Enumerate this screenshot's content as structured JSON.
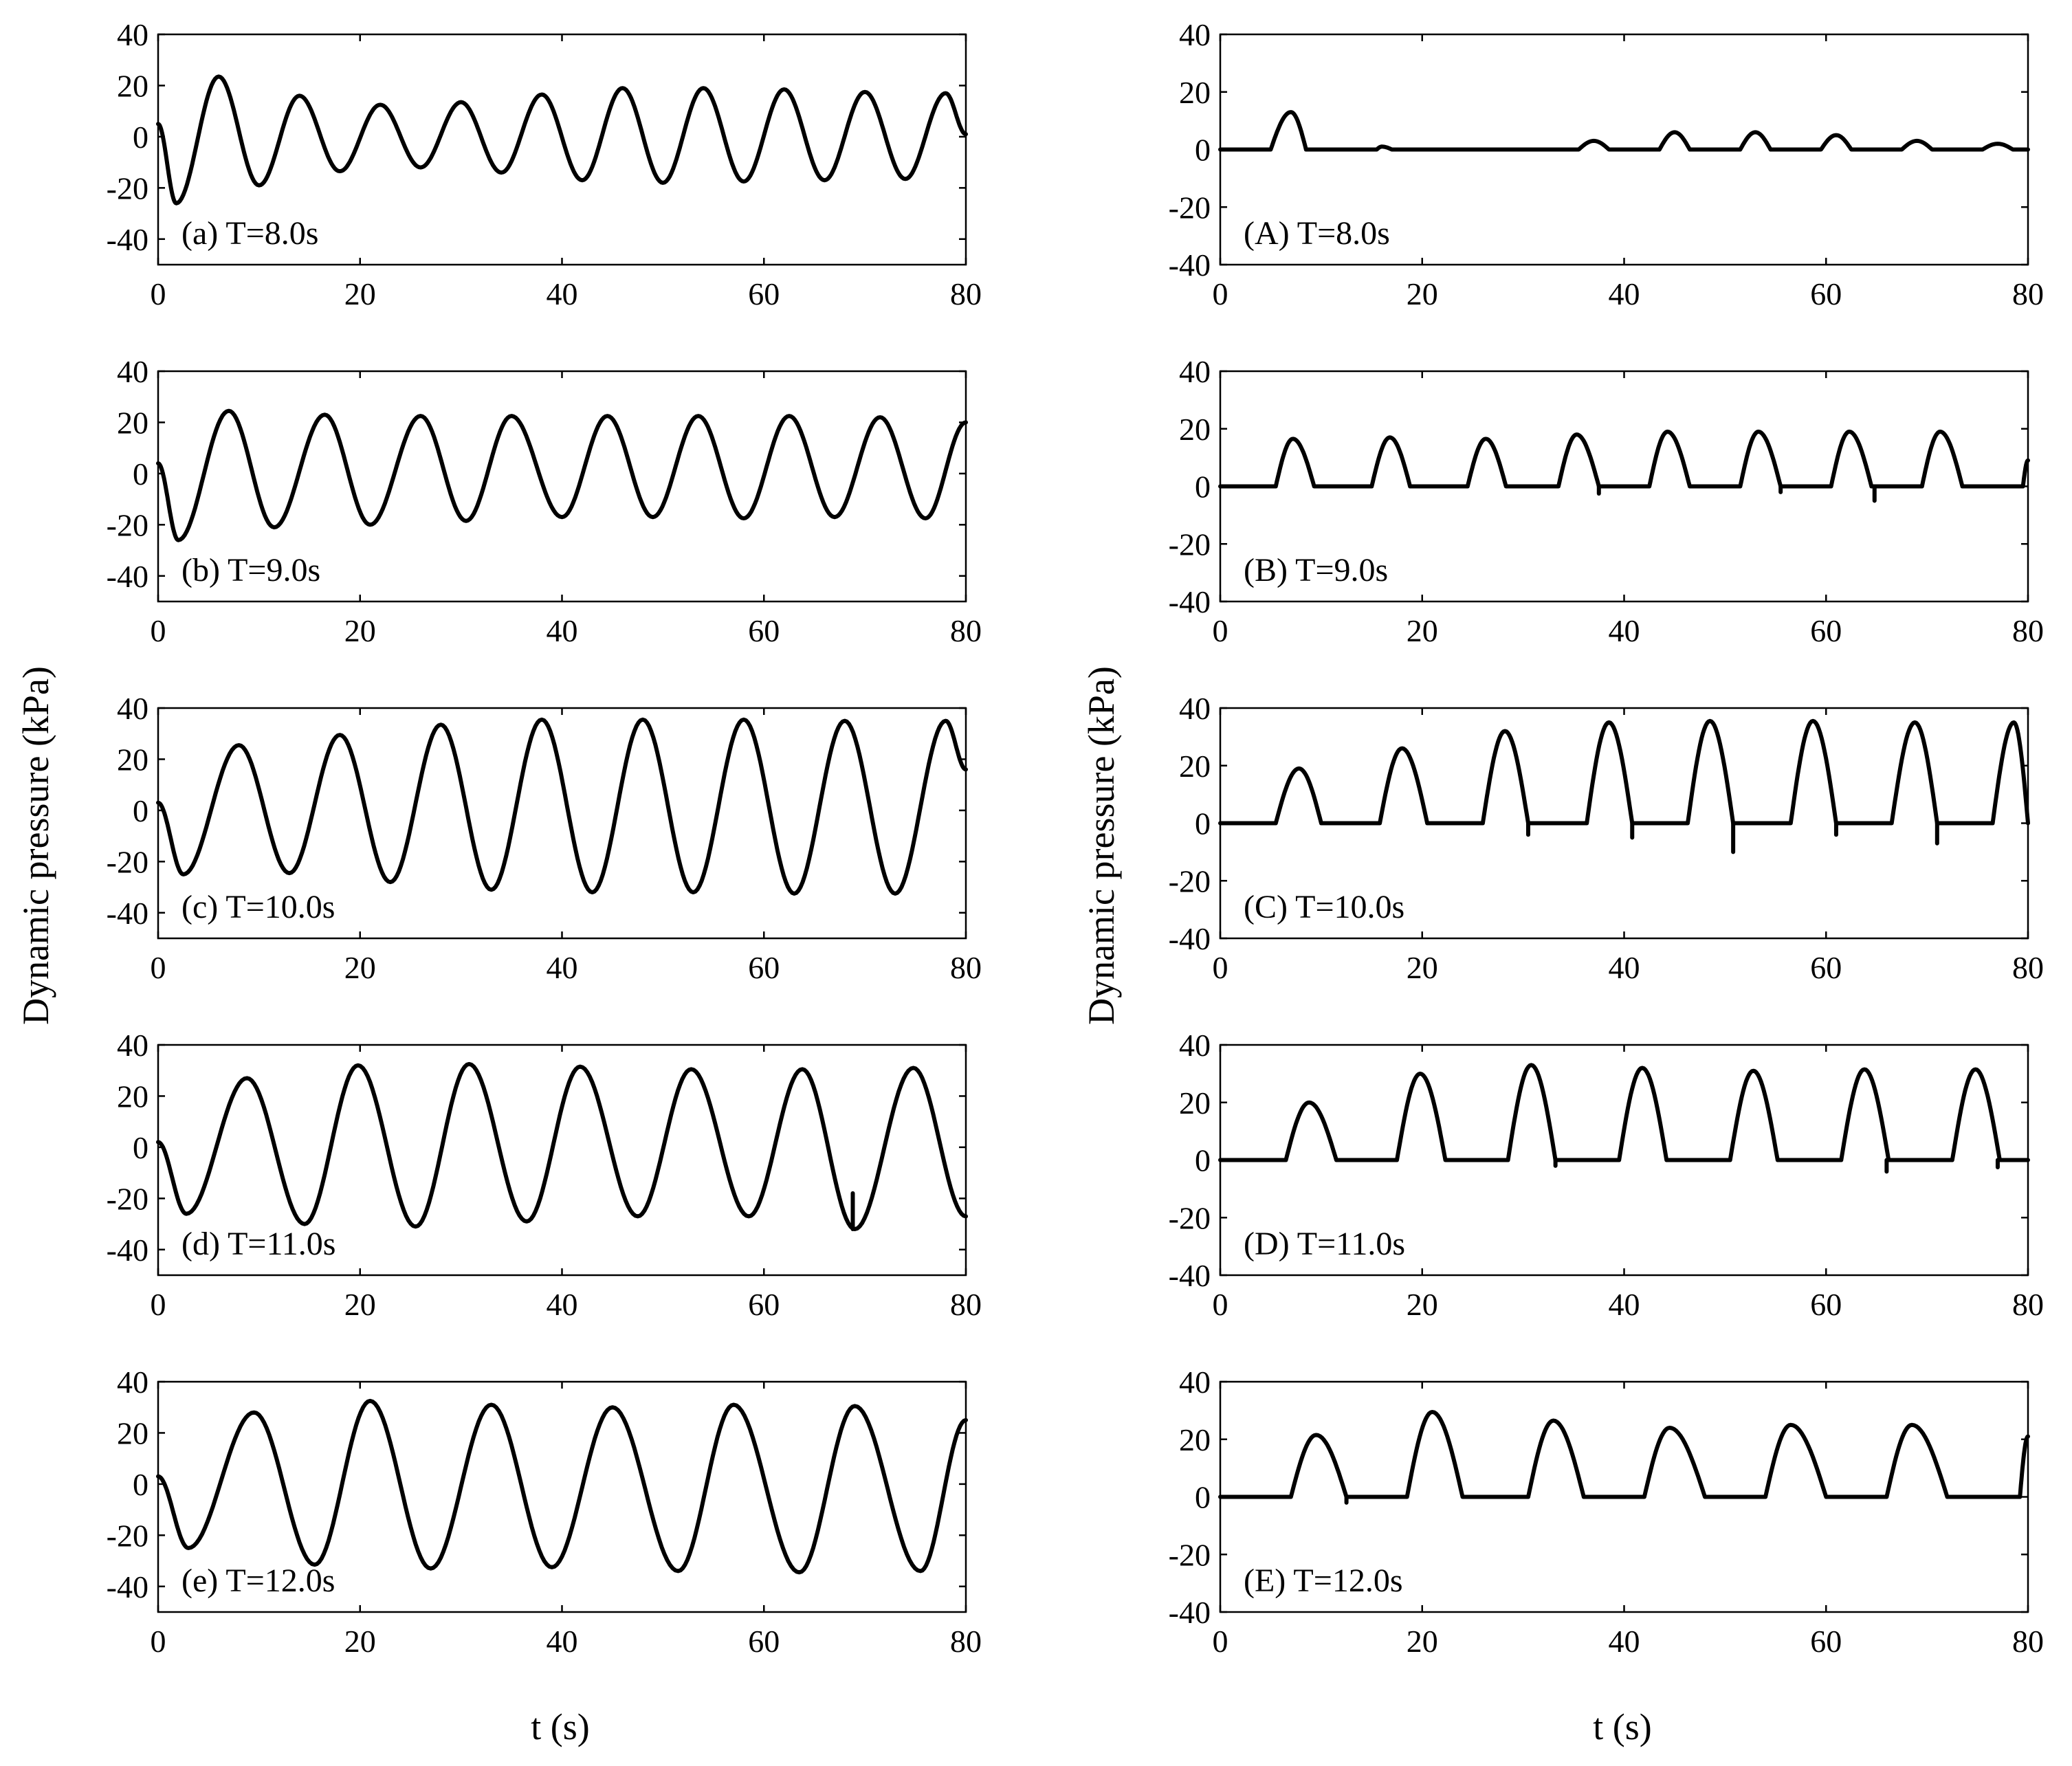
{
  "chart_data": [
    {
      "id": "a",
      "type": "line",
      "panel_label": "(a) T=8.0s",
      "model": "sine",
      "period": 8.0,
      "xlim": [
        0,
        80
      ],
      "ylim": [
        -50,
        40
      ],
      "xticks": [
        0,
        20,
        40,
        60,
        80
      ],
      "yticks": [
        -40,
        -20,
        0,
        20,
        40
      ],
      "peaks": [
        [
          6.0,
          23.5
        ],
        [
          14.0,
          16.0
        ],
        [
          22.0,
          12.5
        ],
        [
          30.0,
          13.5
        ],
        [
          38.0,
          16.5
        ],
        [
          46.0,
          19.0
        ],
        [
          54.0,
          19.0
        ],
        [
          62.0,
          18.5
        ],
        [
          70.0,
          17.5
        ],
        [
          78.0,
          17.0
        ]
      ],
      "troughs": [
        [
          0.0,
          5.0
        ],
        [
          1.8,
          -26.0
        ],
        [
          10.0,
          -19.0
        ],
        [
          18.0,
          -13.5
        ],
        [
          26.0,
          -12.0
        ],
        [
          34.0,
          -14.0
        ],
        [
          42.0,
          -17.0
        ],
        [
          50.0,
          -18.0
        ],
        [
          58.0,
          -17.5
        ],
        [
          66.0,
          -17.0
        ],
        [
          74.0,
          -16.5
        ],
        [
          80.0,
          1.0
        ]
      ]
    },
    {
      "id": "b",
      "type": "line",
      "panel_label": "(b) T=9.0s",
      "model": "sine",
      "period": 9.0,
      "xlim": [
        0,
        80
      ],
      "ylim": [
        -50,
        40
      ],
      "xticks": [
        0,
        20,
        40,
        60,
        80
      ],
      "yticks": [
        -40,
        -20,
        0,
        20,
        40
      ],
      "peaks": [
        [
          7.0,
          24.5
        ],
        [
          16.5,
          23.0
        ],
        [
          26.0,
          22.5
        ],
        [
          35.0,
          22.5
        ],
        [
          44.5,
          22.5
        ],
        [
          53.5,
          22.5
        ],
        [
          62.5,
          22.5
        ],
        [
          71.5,
          22.0
        ]
      ],
      "troughs": [
        [
          0.0,
          4.0
        ],
        [
          2.0,
          -26.0
        ],
        [
          11.5,
          -21.0
        ],
        [
          21.0,
          -20.0
        ],
        [
          30.5,
          -18.5
        ],
        [
          40.0,
          -17.0
        ],
        [
          49.0,
          -17.0
        ],
        [
          58.0,
          -17.5
        ],
        [
          67.0,
          -17.0
        ],
        [
          76.0,
          -17.5
        ],
        [
          80.0,
          20.0
        ]
      ]
    },
    {
      "id": "c",
      "type": "line",
      "panel_label": "(c) T=10.0s",
      "model": "sine",
      "period": 10.0,
      "xlim": [
        0,
        80
      ],
      "ylim": [
        -50,
        40
      ],
      "xticks": [
        0,
        20,
        40,
        60,
        80
      ],
      "yticks": [
        -40,
        -20,
        0,
        20,
        40
      ],
      "peaks": [
        [
          8.0,
          25.5
        ],
        [
          18.0,
          29.5
        ],
        [
          28.0,
          33.5
        ],
        [
          38.0,
          35.5
        ],
        [
          48.0,
          35.5
        ],
        [
          58.0,
          35.5
        ],
        [
          68.0,
          35.0
        ],
        [
          78.0,
          35.0
        ]
      ],
      "troughs": [
        [
          0.0,
          3.0
        ],
        [
          2.5,
          -25.0
        ],
        [
          13.0,
          -24.5
        ],
        [
          23.0,
          -28.0
        ],
        [
          33.0,
          -31.0
        ],
        [
          43.0,
          -32.0
        ],
        [
          53.0,
          -32.0
        ],
        [
          63.0,
          -32.5
        ],
        [
          73.0,
          -32.5
        ],
        [
          80.0,
          16.0
        ]
      ]
    },
    {
      "id": "d",
      "type": "line",
      "panel_label": "(d) T=11.0s",
      "model": "sine",
      "period": 11.0,
      "xlim": [
        0,
        80
      ],
      "ylim": [
        -50,
        40
      ],
      "xticks": [
        0,
        20,
        40,
        60,
        80
      ],
      "yticks": [
        -40,
        -20,
        0,
        20,
        40
      ],
      "peaks": [
        [
          8.8,
          27.0
        ],
        [
          19.8,
          32.0
        ],
        [
          30.8,
          32.5
        ],
        [
          41.8,
          31.5
        ],
        [
          52.8,
          30.5
        ],
        [
          63.8,
          30.5
        ],
        [
          74.8,
          31.0
        ]
      ],
      "troughs": [
        [
          0.0,
          2.0
        ],
        [
          2.8,
          -26.0
        ],
        [
          14.5,
          -30.0
        ],
        [
          25.5,
          -31.0
        ],
        [
          36.5,
          -29.0
        ],
        [
          47.5,
          -27.0
        ],
        [
          58.5,
          -27.0
        ],
        [
          69.0,
          -32.0
        ],
        [
          80.0,
          -27.0
        ]
      ],
      "spikes": [
        [
          68.8,
          -32.0
        ]
      ]
    },
    {
      "id": "e",
      "type": "line",
      "panel_label": "(e) T=12.0s",
      "model": "sine",
      "period": 12.0,
      "xlim": [
        0,
        80
      ],
      "ylim": [
        -50,
        40
      ],
      "xticks": [
        0,
        20,
        40,
        60,
        80
      ],
      "yticks": [
        -40,
        -20,
        0,
        20,
        40
      ],
      "peaks": [
        [
          9.5,
          28.0
        ],
        [
          21.0,
          32.5
        ],
        [
          33.0,
          31.0
        ],
        [
          45.0,
          30.0
        ],
        [
          57.0,
          31.0
        ],
        [
          69.0,
          30.5
        ]
      ],
      "troughs": [
        [
          0.0,
          3.0
        ],
        [
          3.0,
          -25.0
        ],
        [
          15.5,
          -31.5
        ],
        [
          27.0,
          -33.0
        ],
        [
          39.0,
          -32.5
        ],
        [
          51.5,
          -34.0
        ],
        [
          63.5,
          -34.5
        ],
        [
          75.5,
          -34.0
        ],
        [
          80.0,
          25.0
        ]
      ]
    },
    {
      "id": "A",
      "type": "line",
      "panel_label": "(A) T=8.0s",
      "model": "pulse",
      "xlim": [
        0,
        80
      ],
      "ylim": [
        -40,
        40
      ],
      "xticks": [
        0,
        20,
        40,
        60,
        80
      ],
      "yticks": [
        -40,
        -20,
        0,
        20,
        40
      ],
      "pulses": [
        [
          5.0,
          7.0,
          13.0,
          8.5
        ],
        [
          15.5,
          16.0,
          1.0,
          17.0
        ],
        [
          35.5,
          37.0,
          3.0,
          38.5
        ],
        [
          43.5,
          45.0,
          6.0,
          46.5
        ],
        [
          51.5,
          53.0,
          6.0,
          54.5
        ],
        [
          59.5,
          61.0,
          5.0,
          62.5
        ],
        [
          67.5,
          69.0,
          3.0,
          70.5
        ],
        [
          75.5,
          77.0,
          2.0,
          78.5
        ]
      ]
    },
    {
      "id": "B",
      "type": "line",
      "panel_label": "(B) T=9.0s",
      "model": "pulse",
      "xlim": [
        0,
        80
      ],
      "ylim": [
        -40,
        40
      ],
      "xticks": [
        0,
        20,
        40,
        60,
        80
      ],
      "yticks": [
        -40,
        -20,
        0,
        20,
        40
      ],
      "pulses": [
        [
          5.5,
          7.2,
          16.5,
          9.3
        ],
        [
          15.0,
          16.8,
          17.0,
          18.8
        ],
        [
          24.5,
          26.3,
          16.5,
          28.3
        ],
        [
          33.5,
          35.3,
          18.0,
          37.5
        ],
        [
          42.5,
          44.3,
          19.0,
          46.5
        ],
        [
          51.5,
          53.3,
          19.0,
          55.5
        ],
        [
          60.5,
          62.3,
          19.0,
          64.5
        ],
        [
          69.5,
          71.3,
          19.0,
          73.5
        ],
        [
          79.5,
          80.0,
          9.0,
          80.0
        ]
      ],
      "spikes": [
        [
          37.5,
          -2.5
        ],
        [
          55.5,
          -2.0
        ],
        [
          64.8,
          -5.0
        ]
      ]
    },
    {
      "id": "C",
      "type": "line",
      "panel_label": "(C) T=10.0s",
      "model": "pulse",
      "xlim": [
        0,
        80
      ],
      "ylim": [
        -40,
        40
      ],
      "xticks": [
        0,
        20,
        40,
        60,
        80
      ],
      "yticks": [
        -40,
        -20,
        0,
        20,
        40
      ],
      "pulses": [
        [
          5.5,
          7.8,
          19.0,
          10.0
        ],
        [
          15.8,
          18.0,
          26.0,
          20.5
        ],
        [
          26.0,
          28.2,
          32.0,
          30.5
        ],
        [
          36.3,
          38.5,
          35.0,
          40.8
        ],
        [
          46.3,
          48.5,
          35.5,
          50.8
        ],
        [
          56.5,
          58.7,
          35.5,
          61.0
        ],
        [
          66.5,
          68.8,
          35.0,
          71.0
        ],
        [
          76.5,
          78.6,
          35.0,
          80.0
        ]
      ],
      "spikes": [
        [
          30.5,
          -4.0
        ],
        [
          40.8,
          -5.0
        ],
        [
          50.8,
          -10.0
        ],
        [
          61.0,
          -4.0
        ],
        [
          71.0,
          -7.0
        ]
      ]
    },
    {
      "id": "D",
      "type": "line",
      "panel_label": "(D) T=11.0s",
      "model": "pulse",
      "xlim": [
        0,
        80
      ],
      "ylim": [
        -40,
        40
      ],
      "xticks": [
        0,
        20,
        40,
        60,
        80
      ],
      "yticks": [
        -40,
        -20,
        0,
        20,
        40
      ],
      "pulses": [
        [
          6.5,
          8.8,
          20.0,
          11.5
        ],
        [
          17.5,
          19.8,
          30.0,
          22.3
        ],
        [
          28.5,
          30.8,
          33.0,
          33.2
        ],
        [
          39.5,
          41.8,
          32.0,
          44.2
        ],
        [
          50.5,
          52.8,
          31.0,
          55.2
        ],
        [
          61.5,
          63.8,
          31.5,
          66.2
        ],
        [
          72.5,
          74.8,
          31.5,
          77.2
        ]
      ],
      "spikes": [
        [
          33.2,
          -2.0
        ],
        [
          66.0,
          -4.0
        ],
        [
          77.0,
          -2.5
        ]
      ]
    },
    {
      "id": "E",
      "type": "line",
      "panel_label": "(E) T=12.0s",
      "model": "pulse",
      "xlim": [
        0,
        80
      ],
      "ylim": [
        -40,
        40
      ],
      "xticks": [
        0,
        20,
        40,
        60,
        80
      ],
      "yticks": [
        -40,
        -20,
        0,
        20,
        40
      ],
      "pulses": [
        [
          7.0,
          9.5,
          21.5,
          12.5
        ],
        [
          18.5,
          21.0,
          29.5,
          24.0
        ],
        [
          30.5,
          33.0,
          26.5,
          36.0
        ],
        [
          42.0,
          44.5,
          24.0,
          48.0
        ],
        [
          54.0,
          56.5,
          25.0,
          60.0
        ],
        [
          66.0,
          68.5,
          25.0,
          72.0
        ],
        [
          79.2,
          80.0,
          21.0,
          80.0
        ]
      ],
      "spikes": [
        [
          12.5,
          -2.0
        ]
      ]
    }
  ],
  "ylabel": "Dynamic pressure (kPa)",
  "xlabel": "t (s)"
}
